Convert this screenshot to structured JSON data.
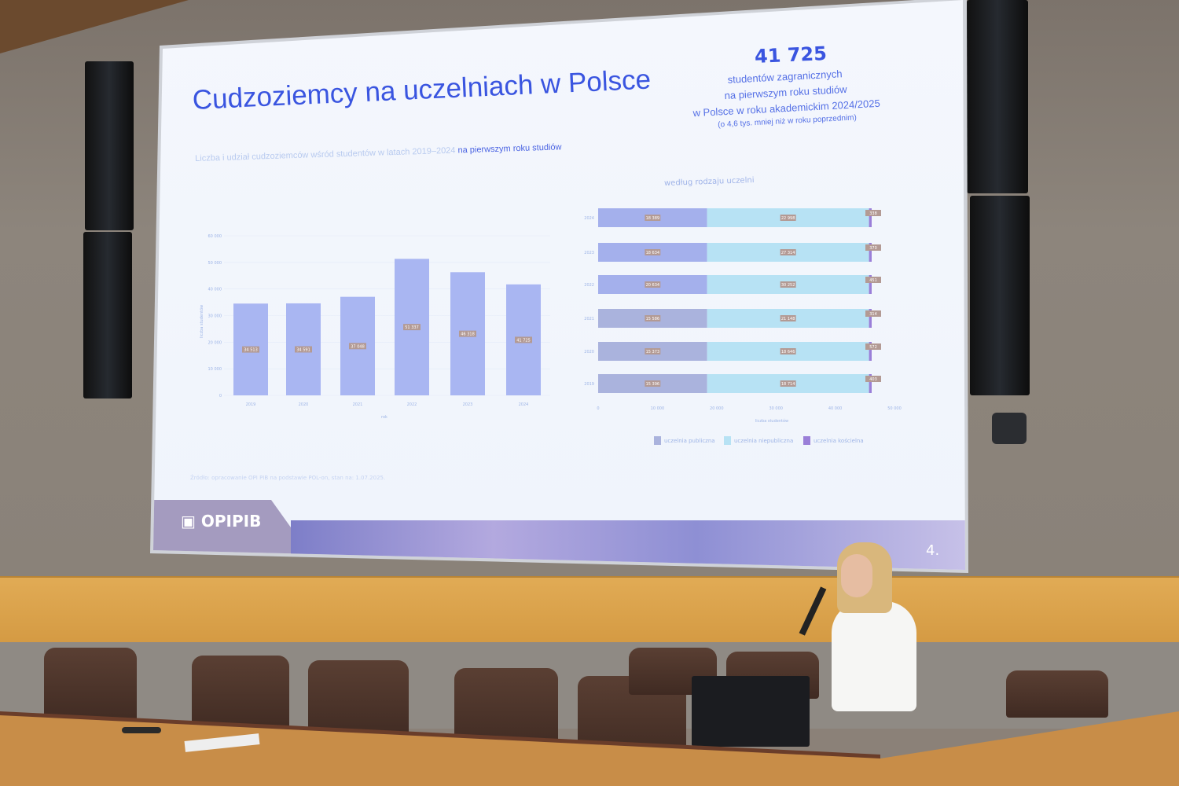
{
  "slide": {
    "title": "Cudzoziemcy na uczelniach w Polsce",
    "highlight_number": "41 725",
    "highlight_lines": [
      "studentów zagranicznych",
      "na pierwszym roku studiów",
      "w Polsce w roku akademickim 2024/2025",
      "(o 4,6 tys. mniej niż w roku poprzednim)"
    ],
    "subtitle_light": "Liczba i udział cudzoziemców wśród studentów w latach 2019–2024",
    "subtitle_strong": "na pierwszym roku studiów",
    "right_chart_heading": "według rodzaju uczelni",
    "source": "Źródło: opracowanie OPI PIB na podstawie POL-on, stan na: 1.07.2025.",
    "logo": "OPIPIB",
    "page_number": "4.",
    "colors": {
      "accent": "#3a55e0",
      "bar": "#a9b6f2",
      "public": "#aab3dd",
      "nonpublic": "#b7e2f4",
      "church": "#9a7fd8"
    }
  },
  "chart_data": [
    {
      "type": "bar",
      "categories": [
        "2019",
        "2020",
        "2021",
        "2022",
        "2023",
        "2024"
      ],
      "values": [
        34513,
        34591,
        37048,
        51337,
        46318,
        41725
      ],
      "value_labels": [
        "34 513",
        "34 591",
        "37 048",
        "51 337",
        "46 318",
        "41 725"
      ],
      "xlabel": "rok",
      "ylabel": "liczba studentów",
      "ylim": [
        0,
        60000
      ],
      "yticks": [
        "0",
        "10 000",
        "20 000",
        "30 000",
        "40 000",
        "50 000",
        "60 000"
      ],
      "grid": true
    },
    {
      "type": "bar",
      "orientation": "horizontal",
      "stacked": true,
      "title": "według rodzaju uczelni",
      "categories": [
        "2024",
        "2023",
        "2022",
        "2021",
        "2020",
        "2019"
      ],
      "series": [
        {
          "name": "uczelnia publiczna",
          "values": [
            18389,
            18634,
            20634,
            15586,
            15373,
            15396
          ],
          "labels": [
            "18 389",
            "18 634",
            "20 634",
            "15 586",
            "15 373",
            "15 396"
          ]
        },
        {
          "name": "uczelnia niepubliczna",
          "values": [
            22998,
            27314,
            30252,
            21148,
            18646,
            18714
          ],
          "labels": [
            "22 998",
            "27 314",
            "30 252",
            "21 148",
            "18 646",
            "18 714"
          ]
        },
        {
          "name": "uczelnia kościelna",
          "values": [
            338,
            370,
            451,
            314,
            572,
            403
          ],
          "labels": [
            "338",
            "370",
            "451",
            "314",
            "572",
            "403"
          ]
        }
      ],
      "xlabel": "liczba studentów",
      "xlim": [
        0,
        50000
      ],
      "xticks": [
        "0",
        "10 000",
        "20 000",
        "30 000",
        "40 000",
        "50 000"
      ],
      "legend": "bottom"
    }
  ]
}
